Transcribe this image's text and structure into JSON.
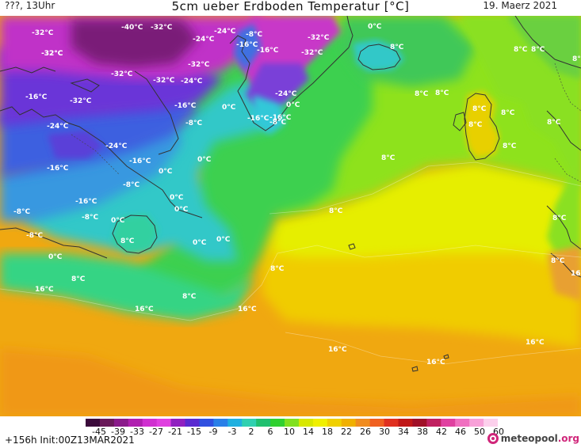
{
  "header": {
    "location": "???, 13Uhr",
    "title": "5cm ueber Erdboden Temperatur [°C]",
    "date": "19. Maerz 2021"
  },
  "footer": {
    "run_info": "+156h  Init:00Z13MAR2021",
    "logo_text": "meteopool",
    "logo_tld": ".org"
  },
  "colorbar": {
    "ticks": [
      "-45",
      "-39",
      "-33",
      "-27",
      "-21",
      "-15",
      "-9",
      "-3",
      "2",
      "6",
      "10",
      "14",
      "18",
      "22",
      "26",
      "30",
      "34",
      "38",
      "42",
      "46",
      "50",
      "60"
    ],
    "colors": [
      "#3a0a3a",
      "#6a1a5a",
      "#8a1a8a",
      "#b020b0",
      "#d030d0",
      "#e040e0",
      "#9020c0",
      "#5a2ad0",
      "#3050e0",
      "#2a80e8",
      "#20b0e0",
      "#30d0b0",
      "#20c070",
      "#30d030",
      "#80e020",
      "#d8e800",
      "#f0f000",
      "#f0d000",
      "#f0b000",
      "#f08c20",
      "#f06020",
      "#e03020",
      "#c01818",
      "#a01028",
      "#c02060",
      "#e040a0",
      "#f070c0",
      "#f8a0d8",
      "#fcd0ec"
    ]
  },
  "map": {
    "colors": {
      "deep_purple": "#6a1a6a",
      "magenta": "#c030c0",
      "violet": "#6a30d8",
      "blue": "#3a5ae0",
      "cyan": "#30c0d8",
      "aqua_green": "#30d8a0",
      "green": "#40d050",
      "lime": "#90e020",
      "yellow": "#e8f000",
      "gold": "#f0d000",
      "orange": "#f0b000",
      "dark_orange": "#f09010",
      "coast": "#333333"
    },
    "labels": [
      {
        "t": "-32°C"
      },
      {
        "t": "-40°C"
      },
      {
        "t": "-32°C"
      },
      {
        "t": "-32°C"
      },
      {
        "t": "-24°C"
      },
      {
        "t": "-16°C"
      },
      {
        "t": "-8°C"
      },
      {
        "t": "-32°C"
      },
      {
        "t": "-24°C"
      },
      {
        "t": "-16°C"
      },
      {
        "t": "0°C"
      },
      {
        "t": "-32°C"
      },
      {
        "t": "-32°C"
      },
      {
        "t": "-32°C"
      },
      {
        "t": "-32°C"
      },
      {
        "t": "-32°C"
      },
      {
        "t": "-24°C"
      },
      {
        "t": "-16°C"
      },
      {
        "t": "-32°C"
      },
      {
        "t": "-16°C"
      },
      {
        "t": "-24°C"
      },
      {
        "t": "-16°C"
      },
      {
        "t": "0°C"
      },
      {
        "t": "0°C"
      },
      {
        "t": "-16°C"
      },
      {
        "t": "-8°C"
      },
      {
        "t": "-8°C"
      },
      {
        "t": "-24°C"
      },
      {
        "t": "-24°C"
      },
      {
        "t": "-16°C"
      },
      {
        "t": "0°C"
      },
      {
        "t": "-16°C"
      },
      {
        "t": "0°C"
      },
      {
        "t": "-8°C"
      },
      {
        "t": "0°C"
      },
      {
        "t": "-8°C"
      },
      {
        "t": "-16°C"
      },
      {
        "t": "0°C"
      },
      {
        "t": "-8°C"
      },
      {
        "t": "0°C"
      },
      {
        "t": "-8°C"
      },
      {
        "t": "0°C"
      },
      {
        "t": "0°C"
      },
      {
        "t": "0°C"
      },
      {
        "t": "8°C"
      },
      {
        "t": "8°C"
      },
      {
        "t": "8°C"
      },
      {
        "t": "8°C"
      },
      {
        "t": "16°C"
      },
      {
        "t": "16°C"
      },
      {
        "t": "16°C"
      },
      {
        "t": "16°C"
      },
      {
        "t": "16°C"
      },
      {
        "t": "16°C"
      },
      {
        "t": "16°C"
      },
      {
        "t": "8°C"
      },
      {
        "t": "8°C"
      },
      {
        "t": "8°C"
      },
      {
        "t": "8°C"
      },
      {
        "t": "8°C"
      },
      {
        "t": "8°C"
      },
      {
        "t": "8°C"
      },
      {
        "t": "8°C"
      },
      {
        "t": "8°C"
      },
      {
        "t": "8°C"
      },
      {
        "t": "8°C"
      },
      {
        "t": "8°C"
      },
      {
        "t": "8°C"
      },
      {
        "t": "8°C"
      },
      {
        "t": "16°C"
      },
      {
        "t": "8°C"
      }
    ]
  }
}
